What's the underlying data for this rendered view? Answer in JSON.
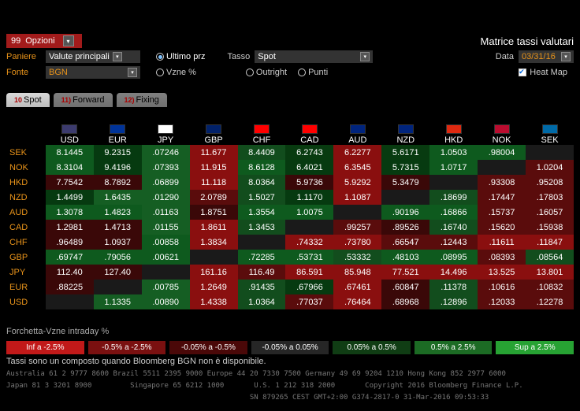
{
  "header": {
    "opzioni_num": "99",
    "opzioni_text": "Opzioni",
    "title": "Matrice tassi valutari"
  },
  "filters": {
    "paniere_label": "Paniere",
    "paniere_value": "Valute principali",
    "fonte_label": "Fonte",
    "fonte_value": "BGN",
    "ultimo_prz": "Ultimo prz",
    "vzne": "Vzne %",
    "tasso_label": "Tasso",
    "tasso_value": "Spot",
    "outright": "Outright",
    "punti": "Punti",
    "data_label": "Data",
    "data_value": "03/31/16",
    "heat_label": "Heat Map"
  },
  "tabs": {
    "t1": "Spot",
    "t1n": "10",
    "t2": "Forward",
    "t2n": "11)",
    "t3": "Fixing",
    "t3n": "12)"
  },
  "cols": [
    "USD",
    "EUR",
    "JPY",
    "GBP",
    "CHF",
    "CAD",
    "AUD",
    "NZD",
    "HKD",
    "NOK",
    "SEK"
  ],
  "col_flags": [
    "#3c3b6e",
    "#003399",
    "#ffffff",
    "#012169",
    "#ff0000",
    "#ff0000",
    "#00247d",
    "#00247d",
    "#de2910",
    "#ba0c2f",
    "#006aa7"
  ],
  "rows": [
    "SEK",
    "NOK",
    "HKD",
    "NZD",
    "AUD",
    "CAD",
    "CHF",
    "GBP",
    "JPY",
    "EUR",
    "USD"
  ],
  "cells": [
    [
      {
        "v": "8.1445",
        "c": "#0e5a1e"
      },
      {
        "v": "9.2315",
        "c": "#063a10"
      },
      {
        "v": ".07246",
        "c": "#155e23"
      },
      {
        "v": "11.677",
        "c": "#8a0f0f"
      },
      {
        "v": "8.4409",
        "c": "#124d1d"
      },
      {
        "v": "6.2743",
        "c": "#083b10"
      },
      {
        "v": "6.2277",
        "c": "#8a0f0f"
      },
      {
        "v": "5.6171",
        "c": "#083b10"
      },
      {
        "v": "1.0503",
        "c": "#0e5a1e"
      },
      {
        "v": ".98004",
        "c": "#0e5a1e"
      },
      {
        "v": "",
        "c": "diag"
      }
    ],
    [
      {
        "v": "8.3104",
        "c": "#0e5a1e"
      },
      {
        "v": "9.4196",
        "c": "#063a10"
      },
      {
        "v": ".07393",
        "c": "#155e23"
      },
      {
        "v": "11.915",
        "c": "#8a0f0f"
      },
      {
        "v": "8.6128",
        "c": "#0e5a1e"
      },
      {
        "v": "6.4021",
        "c": "#063a10"
      },
      {
        "v": "6.3545",
        "c": "#8a0f0f"
      },
      {
        "v": "5.7315",
        "c": "#063a10"
      },
      {
        "v": "1.0717",
        "c": "#0e5a1e"
      },
      {
        "v": "",
        "c": "diag"
      },
      {
        "v": "1.0204",
        "c": "#5a0c0c"
      }
    ],
    [
      {
        "v": "7.7542",
        "c": "#3a0808"
      },
      {
        "v": "8.7892",
        "c": "#3a0808"
      },
      {
        "v": ".06899",
        "c": "#155e23"
      },
      {
        "v": "11.118",
        "c": "#8a0f0f"
      },
      {
        "v": "8.0364",
        "c": "#124d1d"
      },
      {
        "v": "5.9736",
        "c": "#3a0808"
      },
      {
        "v": "5.9292",
        "c": "#8a0f0f"
      },
      {
        "v": "5.3479",
        "c": "#3a0808"
      },
      {
        "v": "",
        "c": "diag"
      },
      {
        "v": ".93308",
        "c": "#5a0c0c"
      },
      {
        "v": ".95208",
        "c": "#5a0c0c"
      }
    ],
    [
      {
        "v": "1.4499",
        "c": "#063a10"
      },
      {
        "v": "1.6435",
        "c": "#155e23"
      },
      {
        "v": ".01290",
        "c": "#155e23"
      },
      {
        "v": "2.0789",
        "c": "#5a0c0c"
      },
      {
        "v": "1.5027",
        "c": "#124d1d"
      },
      {
        "v": "1.1170",
        "c": "#063a10"
      },
      {
        "v": "1.1087",
        "c": "#8a0f0f"
      },
      {
        "v": "",
        "c": "diag"
      },
      {
        "v": ".18699",
        "c": "#124d1d"
      },
      {
        "v": ".17447",
        "c": "#5a0c0c"
      },
      {
        "v": ".17803",
        "c": "#5a0c0c"
      }
    ],
    [
      {
        "v": "1.3078",
        "c": "#0e5a1e"
      },
      {
        "v": "1.4823",
        "c": "#0e5a1e"
      },
      {
        "v": ".01163",
        "c": "#155e23"
      },
      {
        "v": "1.8751",
        "c": "#3a0808"
      },
      {
        "v": "1.3554",
        "c": "#0e5a1e"
      },
      {
        "v": "1.0075",
        "c": "#0e5a1e"
      },
      {
        "v": "",
        "c": "diag"
      },
      {
        "v": ".90196",
        "c": "#0e5a1e"
      },
      {
        "v": ".16866",
        "c": "#0e5a1e"
      },
      {
        "v": ".15737",
        "c": "#5a0c0c"
      },
      {
        "v": ".16057",
        "c": "#5a0c0c"
      }
    ],
    [
      {
        "v": "1.2981",
        "c": "#3a0808"
      },
      {
        "v": "1.4713",
        "c": "#3a0808"
      },
      {
        "v": ".01155",
        "c": "#155e23"
      },
      {
        "v": "1.8611",
        "c": "#8a0f0f"
      },
      {
        "v": "1.3453",
        "c": "#124d1d"
      },
      {
        "v": "",
        "c": "diag"
      },
      {
        "v": ".99257",
        "c": "#5a0c0c"
      },
      {
        "v": ".89526",
        "c": "#3a0808"
      },
      {
        "v": ".16740",
        "c": "#124d1d"
      },
      {
        "v": ".15620",
        "c": "#5a0c0c"
      },
      {
        "v": ".15938",
        "c": "#5a0c0c"
      }
    ],
    [
      {
        "v": ".96489",
        "c": "#3a0808"
      },
      {
        "v": "1.0937",
        "c": "#3a0808"
      },
      {
        "v": ".00858",
        "c": "#0e5a1e"
      },
      {
        "v": "1.3834",
        "c": "#8a0f0f"
      },
      {
        "v": "",
        "c": "diag"
      },
      {
        "v": ".74332",
        "c": "#8a0f0f"
      },
      {
        "v": ".73780",
        "c": "#8a0f0f"
      },
      {
        "v": ".66547",
        "c": "#5a0c0c"
      },
      {
        "v": ".12443",
        "c": "#5a0c0c"
      },
      {
        "v": ".11611",
        "c": "#8a0f0f"
      },
      {
        "v": ".11847",
        "c": "#8a0f0f"
      }
    ],
    [
      {
        "v": ".69747",
        "c": "#0e5a1e"
      },
      {
        "v": ".79056",
        "c": "#0e5a1e"
      },
      {
        "v": ".00621",
        "c": "#0e5a1e"
      },
      {
        "v": "",
        "c": "diag"
      },
      {
        "v": ".72285",
        "c": "#0e5a1e"
      },
      {
        "v": ".53731",
        "c": "#0e5a1e"
      },
      {
        "v": ".53332",
        "c": "#124d1d"
      },
      {
        "v": ".48103",
        "c": "#0e5a1e"
      },
      {
        "v": ".08995",
        "c": "#0e5a1e"
      },
      {
        "v": ".08393",
        "c": "#5a0c0c"
      },
      {
        "v": ".08564",
        "c": "#124d1d"
      }
    ],
    [
      {
        "v": "112.40",
        "c": "#3a0808"
      },
      {
        "v": "127.40",
        "c": "#3a0808"
      },
      {
        "v": "",
        "c": "diag"
      },
      {
        "v": "161.16",
        "c": "#8a0f0f"
      },
      {
        "v": "116.49",
        "c": "#5a0c0c"
      },
      {
        "v": "86.591",
        "c": "#8a0f0f"
      },
      {
        "v": "85.948",
        "c": "#8a0f0f"
      },
      {
        "v": "77.521",
        "c": "#8a0f0f"
      },
      {
        "v": "14.496",
        "c": "#8a0f0f"
      },
      {
        "v": "13.525",
        "c": "#8a0f0f"
      },
      {
        "v": "13.801",
        "c": "#8a0f0f"
      }
    ],
    [
      {
        "v": ".88225",
        "c": "#3a0808"
      },
      {
        "v": "",
        "c": "diag"
      },
      {
        "v": ".00785",
        "c": "#155e23"
      },
      {
        "v": "1.2649",
        "c": "#8a0f0f"
      },
      {
        "v": ".91435",
        "c": "#124d1d"
      },
      {
        "v": ".67966",
        "c": "#063a10"
      },
      {
        "v": ".67461",
        "c": "#8a0f0f"
      },
      {
        "v": ".60847",
        "c": "#3a0808"
      },
      {
        "v": ".11378",
        "c": "#124d1d"
      },
      {
        "v": ".10616",
        "c": "#5a0c0c"
      },
      {
        "v": ".10832",
        "c": "#5a0c0c"
      }
    ],
    [
      {
        "v": "",
        "c": "diag"
      },
      {
        "v": "1.1335",
        "c": "#155e23"
      },
      {
        "v": ".00890",
        "c": "#155e23"
      },
      {
        "v": "1.4338",
        "c": "#8a0f0f"
      },
      {
        "v": "1.0364",
        "c": "#124d1d"
      },
      {
        "v": ".77037",
        "c": "#5a0c0c"
      },
      {
        "v": ".76464",
        "c": "#8a0f0f"
      },
      {
        "v": ".68968",
        "c": "#3a0808"
      },
      {
        "v": ".12896",
        "c": "#124d1d"
      },
      {
        "v": ".12033",
        "c": "#5a0c0c"
      },
      {
        "v": ".12278",
        "c": "#5a0c0c"
      }
    ]
  ],
  "legend_title": "Forchetta-Vzne intraday %",
  "legend": [
    {
      "t": "Inf a -2.5%",
      "c": "#c11919"
    },
    {
      "t": "-0.5% a -2.5%",
      "c": "#7a1010"
    },
    {
      "t": "-0.05% a -0.5%",
      "c": "#4a0808"
    },
    {
      "t": "-0.05% a 0.05%",
      "c": "#262626"
    },
    {
      "t": "0.05% a 0.5%",
      "c": "#103d14"
    },
    {
      "t": "0.5% a 2.5%",
      "c": "#1c6b24"
    },
    {
      "t": "Sup a 2.5%",
      "c": "#27a233"
    }
  ],
  "msg": "Tassi sono un composto quando Bloomberg BGN non è disponibile.",
  "footer1": "Australia 61 2 9777 8600 Brazil 5511 2395 9000 Europe 44 20 7330 7500 Germany 49 69 9204 1210 Hong Kong 852 2977 6000",
  "footer2": "Japan 81 3 3201 8900         Singapore 65 6212 1000       U.S. 1 212 318 2000       Copyright 2016 Bloomberg Finance L.P.",
  "footer3": "                                                         SN 879265 CEST GMT+2:00 G374-2817-0 31-Mar-2016 09:53:33"
}
